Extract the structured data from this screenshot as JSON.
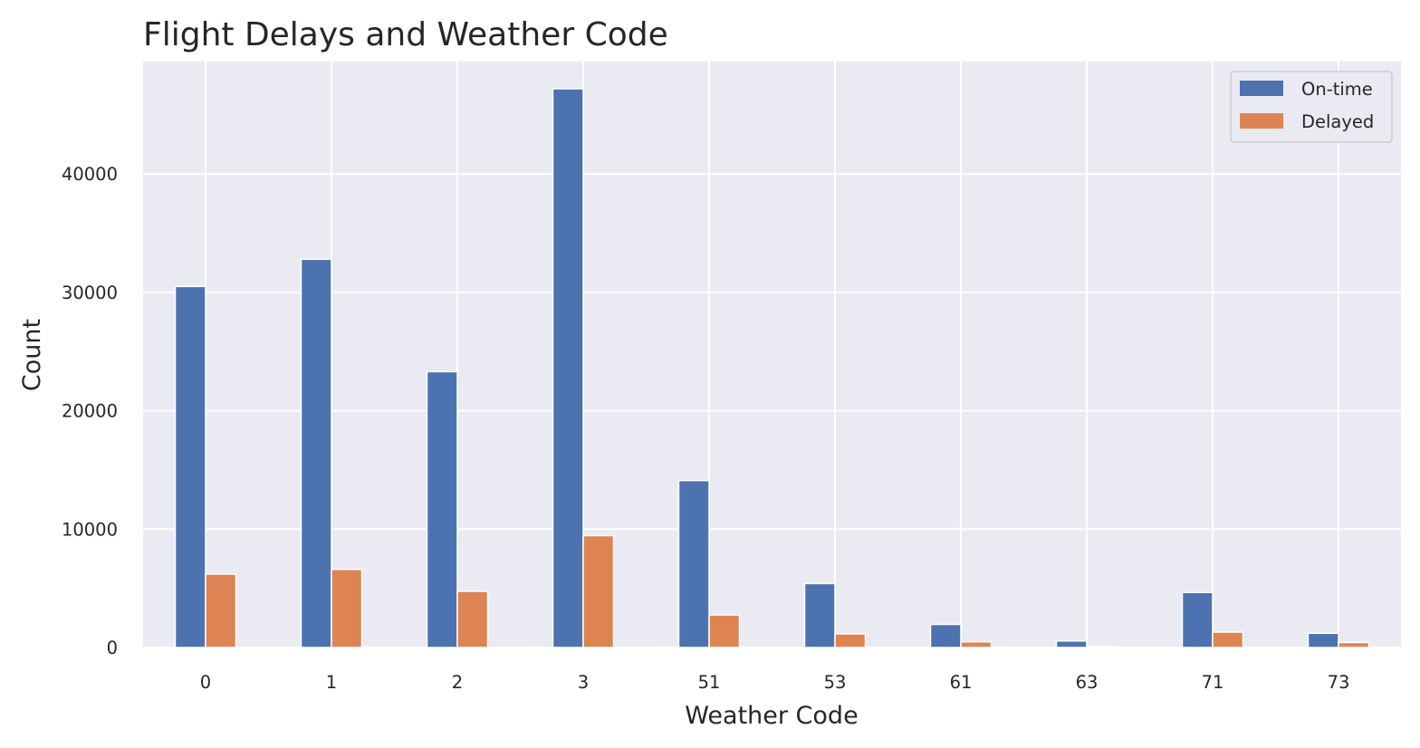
{
  "chart_data": {
    "type": "bar",
    "title": "Flight Delays and Weather Code",
    "xlabel": "Weather Code",
    "ylabel": "Count",
    "categories": [
      "0",
      "1",
      "2",
      "3",
      "51",
      "53",
      "61",
      "63",
      "71",
      "73"
    ],
    "series": [
      {
        "name": "On-time",
        "color": "#4c72b0",
        "values": [
          30500,
          32800,
          23300,
          47200,
          14100,
          5400,
          1950,
          550,
          4650,
          1200
        ]
      },
      {
        "name": "Delayed",
        "color": "#dd8452",
        "values": [
          6200,
          6600,
          4750,
          9450,
          2750,
          1150,
          480,
          90,
          1300,
          420
        ]
      }
    ],
    "yticks": [
      0,
      10000,
      20000,
      30000,
      40000
    ],
    "ylim": [
      0,
      49500
    ],
    "grid": true,
    "legend_position": "top-right",
    "background_color": "#eaeaf2",
    "grid_color": "#ffffff"
  }
}
